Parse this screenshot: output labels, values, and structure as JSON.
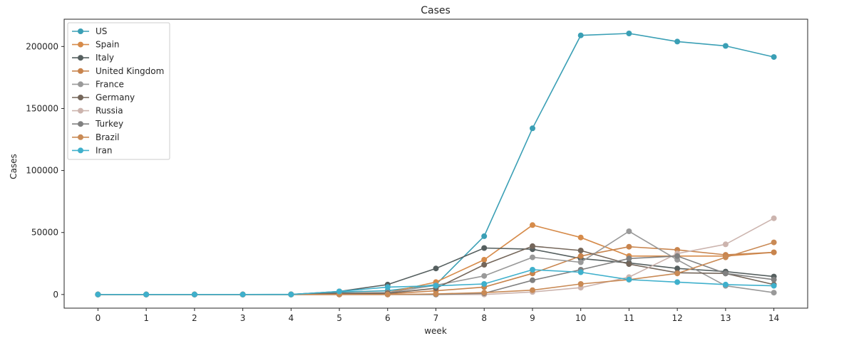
{
  "chart_data": {
    "type": "line",
    "title": "Cases",
    "xlabel": "week",
    "ylabel": "Cases",
    "x": [
      0,
      1,
      2,
      3,
      4,
      5,
      6,
      7,
      8,
      9,
      10,
      11,
      12,
      13,
      14
    ],
    "xticks": [
      "0",
      "1",
      "2",
      "3",
      "4",
      "5",
      "6",
      "7",
      "8",
      "9",
      "10",
      "11",
      "12",
      "13",
      "14"
    ],
    "yticks": [
      0,
      50000,
      100000,
      150000,
      200000
    ],
    "ytick_labels": [
      "0",
      "50000",
      "100000",
      "150000",
      "200000"
    ],
    "ylim": [
      -11000,
      222000
    ],
    "xlim": [
      -0.7,
      14.7
    ],
    "grid": false,
    "legend_position": "upper left",
    "series": [
      {
        "name": "US",
        "color": "#3a9fb5",
        "values": [
          0,
          0,
          0,
          0,
          200,
          2000,
          3000,
          8000,
          47000,
          134000,
          209000,
          210500,
          204000,
          200500,
          191500
        ]
      },
      {
        "name": "Spain",
        "color": "#d68b4a",
        "values": [
          0,
          0,
          0,
          0,
          0,
          1000,
          1500,
          10000,
          28000,
          56000,
          46000,
          31000,
          31000,
          31000,
          34000
        ]
      },
      {
        "name": "Italy",
        "color": "#555f5f",
        "values": [
          0,
          0,
          0,
          0,
          0,
          2500,
          8000,
          21000,
          37500,
          36500,
          29000,
          25500,
          21000,
          18500,
          14500
        ]
      },
      {
        "name": "United Kingdom",
        "color": "#c8844d",
        "values": [
          0,
          0,
          0,
          0,
          0,
          0,
          500,
          3000,
          6000,
          17000,
          31000,
          38500,
          36000,
          32000,
          34000
        ]
      },
      {
        "name": "France",
        "color": "#999999",
        "values": [
          0,
          0,
          0,
          0,
          0,
          1000,
          1500,
          7500,
          15000,
          30000,
          26000,
          51000,
          28000,
          7000,
          1500
        ]
      },
      {
        "name": "Germany",
        "color": "#74665a",
        "values": [
          0,
          0,
          0,
          0,
          0,
          1000,
          1000,
          5000,
          24000,
          39000,
          35500,
          24500,
          17500,
          17000,
          8000
        ]
      },
      {
        "name": "Russia",
        "color": "#ccb4ae",
        "values": [
          0,
          0,
          0,
          0,
          0,
          0,
          0,
          0,
          0,
          2000,
          5500,
          14000,
          33000,
          40500,
          61500
        ]
      },
      {
        "name": "Turkey",
        "color": "#808080",
        "values": [
          0,
          0,
          0,
          0,
          0,
          0,
          0,
          0,
          1000,
          11500,
          20000,
          29000,
          31000,
          17000,
          12000
        ]
      },
      {
        "name": "Brazil",
        "color": "#c98a55",
        "values": [
          0,
          0,
          0,
          0,
          0,
          0,
          0,
          500,
          1500,
          3500,
          8500,
          12000,
          17000,
          30000,
          42000
        ]
      },
      {
        "name": "Iran",
        "color": "#3fb0cc",
        "values": [
          0,
          0,
          0,
          0,
          0,
          2500,
          6000,
          7000,
          8500,
          20000,
          18000,
          12000,
          10000,
          8000,
          7000
        ]
      }
    ]
  }
}
